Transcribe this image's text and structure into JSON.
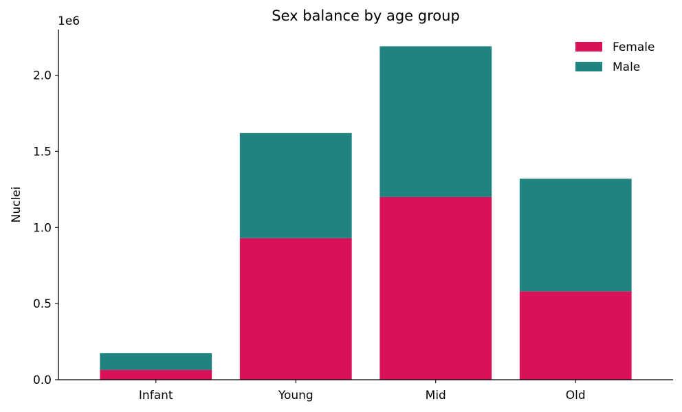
{
  "chart_data": {
    "type": "bar",
    "stacked": true,
    "title": "Sex balance by age group",
    "xlabel": "",
    "ylabel": "Nuclei",
    "y_offset_text": "1e6",
    "categories": [
      "Infant",
      "Young",
      "Mid",
      "Old"
    ],
    "series": [
      {
        "name": "Female",
        "color": "#d81159",
        "values": [
          65000,
          930000,
          1200000,
          580000
        ]
      },
      {
        "name": "Male",
        "color": "#218380",
        "values": [
          110000,
          690000,
          990000,
          740000
        ]
      }
    ],
    "ylim": [
      0,
      2300000
    ],
    "y_ticks": [
      0,
      500000,
      1000000,
      1500000,
      2000000
    ],
    "y_tick_labels": [
      "0.0",
      "0.5",
      "1.0",
      "1.5",
      "2.0"
    ],
    "legend_position": "top-right",
    "grid": false
  }
}
